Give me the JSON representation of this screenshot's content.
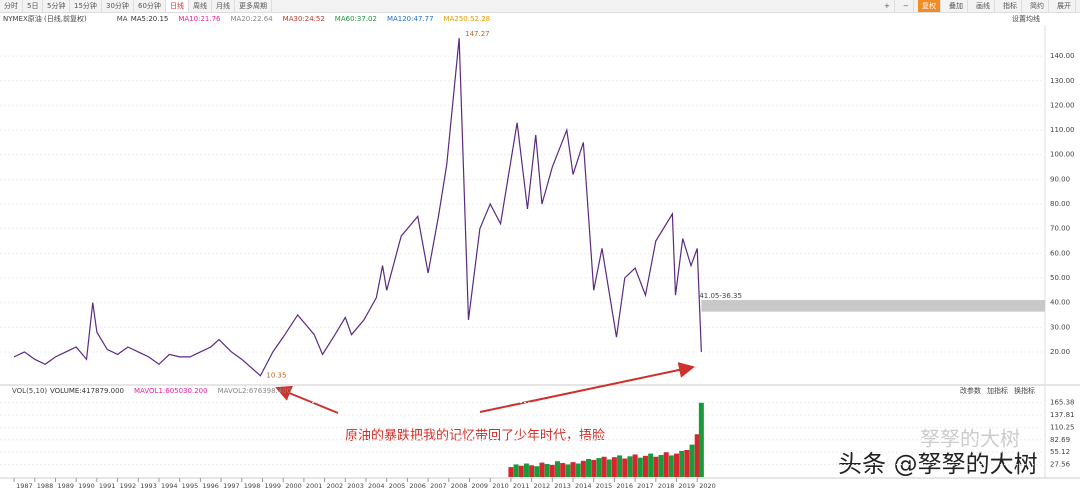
{
  "toolbar": {
    "tabs": [
      "分时",
      "5日",
      "5分钟",
      "15分钟",
      "30分钟",
      "60分钟",
      "日线",
      "周线",
      "月线",
      "更多周期"
    ],
    "active": 6,
    "right": [
      "+",
      "−",
      "复权",
      "叠加",
      "画线",
      "指标",
      "简约",
      "展开"
    ],
    "highlight": 2
  },
  "chart_data": [
    {
      "type": "line",
      "title": "NYMEX原油 (日线,前复权)",
      "ma_label": "MA",
      "ma_legend": [
        {
          "name": "MA5:20.15",
          "color": "#333333"
        },
        {
          "name": "MA10:21.76",
          "color": "#e8239a"
        },
        {
          "name": "MA20:22.64",
          "color": "#888888"
        },
        {
          "name": "MA30:24.52",
          "color": "#c0392b"
        },
        {
          "name": "MA60:37.02",
          "color": "#1a9a3a"
        },
        {
          "name": "MA120:47.77",
          "color": "#1f6fd1"
        },
        {
          "name": "MA250:52.28",
          "color": "#e39a00"
        }
      ],
      "settings_label": "设置均线",
      "x": [
        1987.0,
        1987.5,
        1988.0,
        1988.5,
        1989.0,
        1989.5,
        1990.0,
        1990.5,
        1990.8,
        1991.0,
        1991.5,
        1992.0,
        1992.5,
        1993.0,
        1993.5,
        1994.0,
        1994.5,
        1995.0,
        1995.5,
        1996.0,
        1996.5,
        1996.9,
        1997.5,
        1998.0,
        1998.9,
        1999.5,
        2000.0,
        2000.7,
        2001.5,
        2001.9,
        2002.5,
        2003.0,
        2003.3,
        2003.9,
        2004.5,
        2004.8,
        2005.0,
        2005.7,
        2006.5,
        2007.0,
        2007.5,
        2007.9,
        2008.5,
        2008.95,
        2009.5,
        2010.0,
        2010.5,
        2011.3,
        2011.8,
        2012.2,
        2012.5,
        2013.0,
        2013.7,
        2014.0,
        2014.5,
        2015.0,
        2015.4,
        2016.1,
        2016.5,
        2017.0,
        2017.5,
        2018.0,
        2018.8,
        2018.95,
        2019.3,
        2019.7,
        2020.0,
        2020.2
      ],
      "series": [
        {
          "name": "NYMEX原油",
          "color": "#5a2a82",
          "values": [
            18,
            20,
            17,
            15,
            18,
            20,
            22,
            17,
            40,
            28,
            21,
            19,
            22,
            20,
            18,
            15,
            19,
            18,
            18,
            20,
            22,
            25,
            20,
            17,
            10.35,
            20,
            26,
            35,
            27,
            19,
            27,
            34,
            27,
            33,
            42,
            55,
            45,
            67,
            75,
            52,
            75,
            96,
            147.27,
            33,
            70,
            80,
            72,
            113,
            78,
            108,
            80,
            95,
            110,
            92,
            105,
            45,
            62,
            26,
            50,
            54,
            43,
            65,
            76,
            43,
            66,
            55,
            62,
            20
          ]
        }
      ],
      "high": 147.27,
      "low": 10.35,
      "band": {
        "label": "41.05-36.35",
        "from": 36.35,
        "to": 41.05
      },
      "xlim": [
        1986.32,
        2036.8
      ],
      "ylim": [
        7.4,
        151.4
      ],
      "xticks": [
        1987,
        1988,
        1989,
        1990,
        1991,
        1992,
        1993,
        1994,
        1995,
        1996,
        1997,
        1998,
        1999,
        2000,
        2001,
        2002,
        2003,
        2004,
        2005,
        2006,
        2007,
        2008,
        2009,
        2010,
        2011,
        2012,
        2013,
        2014,
        2015,
        2016,
        2017,
        2018,
        2019,
        2020
      ],
      "yticks": [
        {
          "value": 20,
          "label": "20.00"
        },
        {
          "value": 30,
          "label": "30.00"
        },
        {
          "value": 40,
          "label": "40.00"
        },
        {
          "value": 50,
          "label": "50.00"
        },
        {
          "value": 60,
          "label": "60.00"
        },
        {
          "value": 70,
          "label": "70.00"
        },
        {
          "value": 80,
          "label": "80.00"
        },
        {
          "value": 90,
          "label": "90.00"
        },
        {
          "value": 100,
          "label": "100.00"
        },
        {
          "value": 110,
          "label": "110.00"
        },
        {
          "value": 120,
          "label": "120.00"
        },
        {
          "value": 130,
          "label": "130.00"
        },
        {
          "value": 140,
          "label": "140.00"
        }
      ]
    },
    {
      "type": "bar",
      "title": "VOL(5,10)",
      "legend": [
        {
          "name": "VOLUME:417879.000",
          "color": "#333333"
        },
        {
          "name": "MAVOL1:605030.200",
          "color": "#e8239a"
        },
        {
          "name": "MAVOL2:676398.400",
          "color": "#888888"
        }
      ],
      "buttons": [
        "改参数",
        "加指标",
        "换指标"
      ],
      "x": [
        2011.0,
        2011.25,
        2011.5,
        2011.75,
        2012.0,
        2012.25,
        2012.5,
        2012.75,
        2013.0,
        2013.25,
        2013.5,
        2013.75,
        2014.0,
        2014.25,
        2014.5,
        2014.75,
        2015.0,
        2015.25,
        2015.5,
        2015.75,
        2016.0,
        2016.25,
        2016.5,
        2016.75,
        2017.0,
        2017.25,
        2017.5,
        2017.75,
        2018.0,
        2018.25,
        2018.5,
        2018.75,
        2019.0,
        2019.25,
        2019.5,
        2019.75,
        2020.0,
        2020.2
      ],
      "values": [
        22,
        28,
        25,
        30,
        26,
        24,
        32,
        29,
        27,
        35,
        31,
        28,
        33,
        30,
        36,
        40,
        38,
        42,
        45,
        39,
        44,
        48,
        41,
        46,
        50,
        43,
        47,
        52,
        45,
        49,
        55,
        48,
        52,
        58,
        60,
        72,
        95,
        165
      ],
      "colors": [
        "#d6262f",
        "#1a9a3a"
      ],
      "ylim": [
        0,
        180
      ],
      "yticks": [
        {
          "value": 27.56,
          "label": "27.56"
        },
        {
          "value": 55.12,
          "label": "55.12"
        },
        {
          "value": 82.69,
          "label": "82.69"
        },
        {
          "value": 110.25,
          "label": "110.25"
        },
        {
          "value": 137.81,
          "label": "137.81"
        },
        {
          "value": 165.38,
          "label": "165.38"
        }
      ]
    }
  ],
  "annotation": "原油的暴跌把我的记忆带回了少年时代，捂脸",
  "watermark": {
    "faint": "孥孥的大树",
    "main": "头条 @孥孥的大树"
  }
}
